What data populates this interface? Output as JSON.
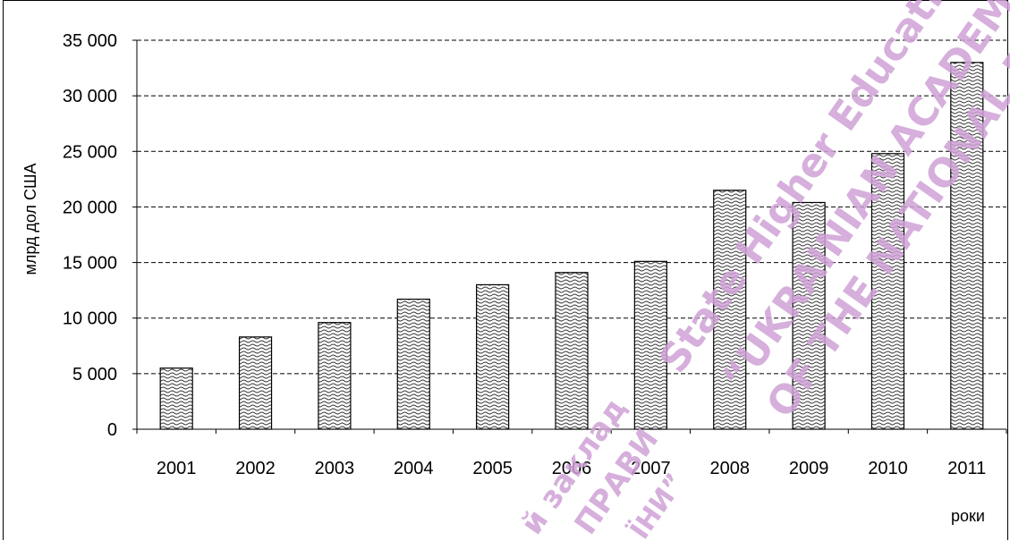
{
  "chart_data": {
    "type": "bar",
    "categories": [
      "2001",
      "2002",
      "2003",
      "2004",
      "2005",
      "2006",
      "2007",
      "2008",
      "2009",
      "2010",
      "2011"
    ],
    "values": [
      5500,
      8300,
      9600,
      11700,
      13000,
      14100,
      15100,
      21500,
      20400,
      24800,
      33000
    ],
    "ylim": [
      0,
      35000
    ],
    "yticks": [
      0,
      5000,
      10000,
      15000,
      20000,
      25000,
      30000,
      35000
    ],
    "ytick_labels": [
      "0",
      "5 000",
      "10 000",
      "15 000",
      "20 000",
      "25 000",
      "30 000",
      "35 000"
    ],
    "ylabel": "млрд дол США",
    "xlabel": "роки",
    "grid": "horizontal dashed",
    "bar_fill": "wavy hatch",
    "watermark": [
      "State Higher Educati",
      "“UKRAINIAN ACADEMY",
      "OF THE NATIONAL BAN",
      "й заклад",
      "ПРАВИ",
      "ЇНИ”"
    ]
  }
}
